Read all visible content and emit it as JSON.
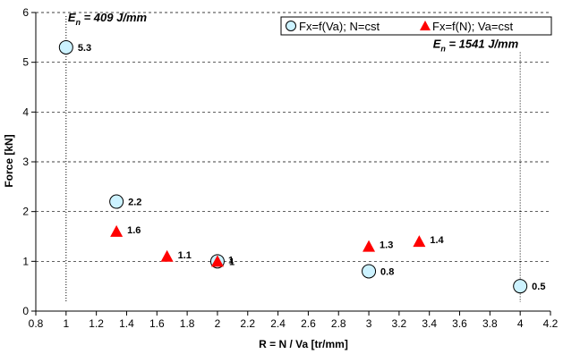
{
  "chart_data": {
    "type": "scatter",
    "xlabel": "R = N / Va [tr/mm]",
    "ylabel": "Force [kN]",
    "xlim": [
      0.8,
      4.2
    ],
    "ylim": [
      0,
      6
    ],
    "xticks": [
      "0.8",
      "1",
      "1.2",
      "1.4",
      "1.6",
      "1.8",
      "2",
      "2.2",
      "2.4",
      "2.6",
      "2.8",
      "3",
      "3.2",
      "3.4",
      "3.6",
      "3.8",
      "4",
      "4.2"
    ],
    "yticks": [
      "0",
      "1",
      "2",
      "3",
      "4",
      "5",
      "6"
    ],
    "grid": "horizontal dashed",
    "legend_position": "top-right",
    "series": [
      {
        "name": "Fx=f(Va); N=cst",
        "marker": "circle",
        "color": "#ccf2ff",
        "points": [
          {
            "x": 1.0,
            "y": 5.3,
            "label": "5.3"
          },
          {
            "x": 1.333,
            "y": 2.2,
            "label": "2.2"
          },
          {
            "x": 2.0,
            "y": 1.0,
            "label": "1"
          },
          {
            "x": 3.0,
            "y": 0.8,
            "label": "0.8"
          },
          {
            "x": 4.0,
            "y": 0.5,
            "label": "0.5"
          }
        ]
      },
      {
        "name": "Fx=f(N); Va=cst",
        "marker": "triangle",
        "color": "#ff0000",
        "points": [
          {
            "x": 1.333,
            "y": 1.6,
            "label": "1.6"
          },
          {
            "x": 1.667,
            "y": 1.1,
            "label": "1.1"
          },
          {
            "x": 2.0,
            "y": 1.0,
            "label": "1"
          },
          {
            "x": 3.0,
            "y": 1.3,
            "label": "1.3"
          },
          {
            "x": 3.333,
            "y": 1.4,
            "label": "1.4"
          }
        ]
      }
    ],
    "annotations": [
      {
        "x": 1.0,
        "main": "E",
        "sub": "n",
        "rest": " = 409 J/mm"
      },
      {
        "x": 4.0,
        "main": "E",
        "sub": "n",
        "rest": " = 1541 J/mm"
      }
    ]
  }
}
